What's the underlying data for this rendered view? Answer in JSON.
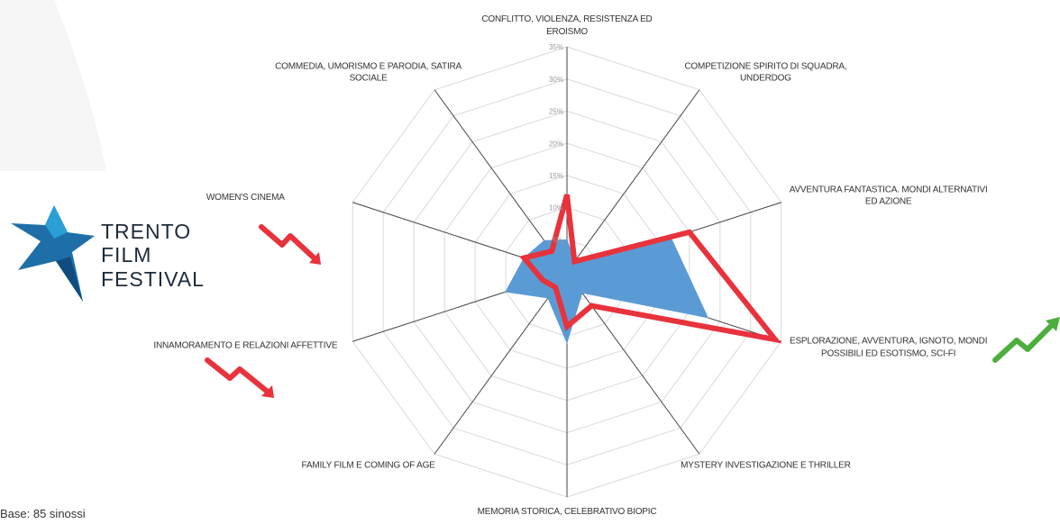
{
  "chart_data": {
    "type": "radar",
    "categories": [
      "CONFLITTO, VIOLENZA, RESISTENZA ED EROISMO",
      "COMPETIZIONE SPIRITO DI SQUADRA, UNDERDOG",
      "AVVENTURA FANTASTICA. MONDI ALTERNATIVI ED AZIONE",
      "ESPLORAZIONE, AVVENTURA, IGNOTO, MONDI POSSIBILI ED ESOTISMO, SCI-FI",
      "MYSTERY INVESTIGAZIONE E THRILLER",
      "MEMORIA STORICA, CELEBRATIVO BIOPIC",
      "FAMILY FILM E COMING OF AGE",
      "INNAMORAMENTO E RELAZIONI AFFETTIVE",
      "WOMEN'S CINEMA",
      "COMMEDIA, UMORISMO E PARODIA, SATIRA SOCIALE"
    ],
    "series": [
      {
        "color": "#5b9bd5",
        "fill": true,
        "values": [
          5,
          2,
          17,
          23,
          4,
          11,
          5,
          10,
          7,
          6
        ]
      },
      {
        "color": "#e8323c",
        "fill": false,
        "values": [
          12,
          2,
          20,
          34,
          6.5,
          8.5,
          3,
          4,
          7,
          4
        ]
      }
    ],
    "ylim": [
      0,
      35
    ],
    "yticks": [
      {
        "value": 5,
        "label": "5%"
      },
      {
        "value": 10,
        "label": "10%"
      },
      {
        "value": 15,
        "label": "15%"
      },
      {
        "value": 20,
        "label": "20%"
      },
      {
        "value": 25,
        "label": "25%"
      },
      {
        "value": 30,
        "label": "30%"
      },
      {
        "value": 35,
        "label": "35%"
      }
    ],
    "grid": true
  },
  "footnote": "Base: 85 sinossi",
  "logo": [
    "TRENTO",
    "FILM",
    "FESTIVAL"
  ]
}
